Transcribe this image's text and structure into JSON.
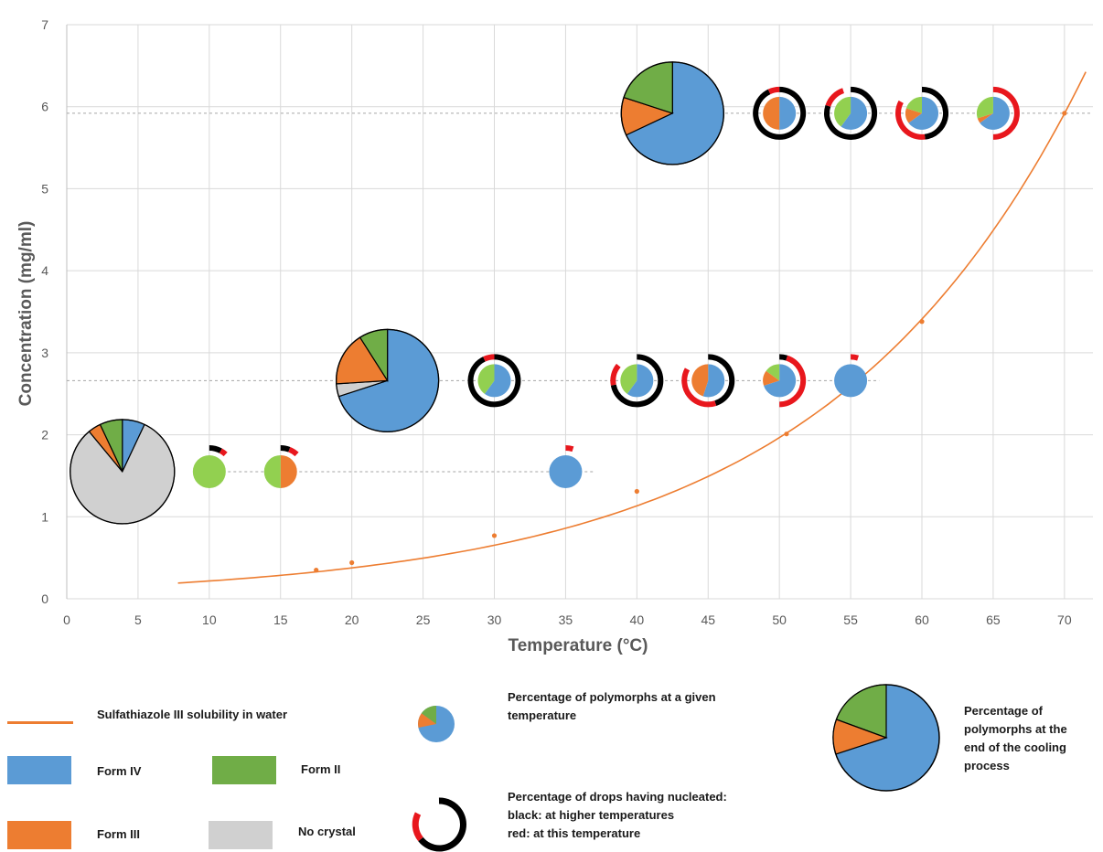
{
  "chart_data": {
    "type": "scatter",
    "xlabel": "Temperature (°C)",
    "ylabel": "Concentration (mg/ml)",
    "xlim": [
      0,
      72
    ],
    "ylim": [
      0,
      7
    ],
    "xticks": [
      0,
      5,
      10,
      15,
      20,
      25,
      30,
      35,
      40,
      45,
      50,
      55,
      60,
      65,
      70
    ],
    "yticks": [
      0,
      1,
      2,
      3,
      4,
      5,
      6,
      7
    ],
    "grid": true,
    "colors": {
      "form_iv": "#5b9bd5",
      "form_iii": "#ed7d31",
      "form_ii": "#70ad47",
      "form_ii_light": "#92d050",
      "no_crystal": "#d0d0d0",
      "solubility": "#ed7d31",
      "nucleated_higher": "#000000",
      "nucleated_this": "#e8171d"
    },
    "solubility_points": [
      {
        "x": 17.5,
        "y": 0.35
      },
      {
        "x": 20,
        "y": 0.44
      },
      {
        "x": 30,
        "y": 0.77
      },
      {
        "x": 40,
        "y": 1.31
      },
      {
        "x": 50.5,
        "y": 2.01
      },
      {
        "x": 60,
        "y": 3.38
      },
      {
        "x": 70,
        "y": 5.92
      }
    ],
    "solubility_fit": {
      "a": 0.125,
      "b": 0.0551,
      "x_from": 7.8,
      "x_to": 71.5
    },
    "reference_lines": [
      {
        "y": 5.92,
        "x_from": 0,
        "x_to": 72
      },
      {
        "y": 2.66,
        "x_from": 0,
        "x_to": 57
      },
      {
        "y": 1.55,
        "x_from": 9,
        "x_to": 37
      }
    ],
    "final_pies": [
      {
        "x": 3.9,
        "y": 1.55,
        "slices": {
          "iv": 0.07,
          "iii": 0.04,
          "ii": 0.07,
          "none": 0.82
        }
      },
      {
        "x": 22.5,
        "y": 2.66,
        "slices": {
          "iv": 0.7,
          "iii": 0.17,
          "ii": 0.09,
          "ii_light": 0.0,
          "none": 0.04
        }
      },
      {
        "x": 42.5,
        "y": 5.92,
        "slices": {
          "iv": 0.68,
          "iii": 0.12,
          "ii": 0.2
        }
      }
    ],
    "temperature_pies": [
      {
        "x": 10,
        "y": 1.55,
        "slices": {
          "iv": 0.0,
          "iii": 0.0,
          "ii_light": 1.0
        },
        "ring": {
          "higher": 0.08,
          "this": 0.04
        }
      },
      {
        "x": 15,
        "y": 1.55,
        "slices": {
          "iv": 0.0,
          "iii": 0.5,
          "ii_light": 0.5
        },
        "ring": {
          "higher": 0.06,
          "this": 0.06
        }
      },
      {
        "x": 35,
        "y": 1.55,
        "slices": {
          "iv": 1.0,
          "iii": 0.0,
          "ii_light": 0.0
        },
        "ring": {
          "higher": 0.0,
          "this": 0.05
        }
      },
      {
        "x": 30,
        "y": 2.66,
        "slices": {
          "iv": 0.6,
          "iii": 0.0,
          "ii_light": 0.4
        },
        "ring": {
          "higher": 0.93,
          "this": 0.07
        }
      },
      {
        "x": 40,
        "y": 2.66,
        "slices": {
          "iv": 0.6,
          "iii": 0.0,
          "ii_light": 0.4
        },
        "ring": {
          "higher": 0.72,
          "this": 0.14
        }
      },
      {
        "x": 45,
        "y": 2.66,
        "slices": {
          "iv": 0.55,
          "iii": 0.45,
          "ii_light": 0.0
        },
        "ring": {
          "higher": 0.45,
          "this": 0.38
        }
      },
      {
        "x": 50,
        "y": 2.66,
        "slices": {
          "iv": 0.7,
          "iii": 0.15,
          "ii_light": 0.15
        },
        "ring": {
          "higher": 0.05,
          "this": 0.45
        }
      },
      {
        "x": 55,
        "y": 2.66,
        "slices": {
          "iv": 1.0,
          "iii": 0.0,
          "ii_light": 0.0
        },
        "ring": {
          "higher": 0.0,
          "this": 0.05
        }
      },
      {
        "x": 50,
        "y": 5.92,
        "slices": {
          "iv": 0.5,
          "iii": 0.5,
          "ii_light": 0.0
        },
        "ring": {
          "higher": 0.93,
          "this": 0.07
        }
      },
      {
        "x": 55,
        "y": 5.92,
        "slices": {
          "iv": 0.6,
          "iii": 0.0,
          "ii_light": 0.4
        },
        "ring": {
          "higher": 0.8,
          "this": 0.15
        }
      },
      {
        "x": 60,
        "y": 5.92,
        "slices": {
          "iv": 0.65,
          "iii": 0.15,
          "ii_light": 0.2
        },
        "ring": {
          "higher": 0.48,
          "this": 0.35
        }
      },
      {
        "x": 65,
        "y": 5.92,
        "slices": {
          "iv": 0.65,
          "iii": 0.05,
          "ii_light": 0.3
        },
        "ring": {
          "higher": 0.0,
          "this": 0.5
        }
      }
    ]
  },
  "legend": {
    "solubility": "Sulfathiazole III solubility in water",
    "form_iv": "Form IV",
    "form_ii": "Form II",
    "form_iii": "Form III",
    "no_crystal": "No crystal",
    "pie_temp": "Percentage of polymorphs at a given temperature",
    "nucleation_1": "Percentage of drops having nucleated:",
    "nucleation_2": "black: at higher temperatures",
    "nucleation_3": "red: at this temperature",
    "pie_final": "Percentage of polymorphs at the end of the cooling process"
  }
}
